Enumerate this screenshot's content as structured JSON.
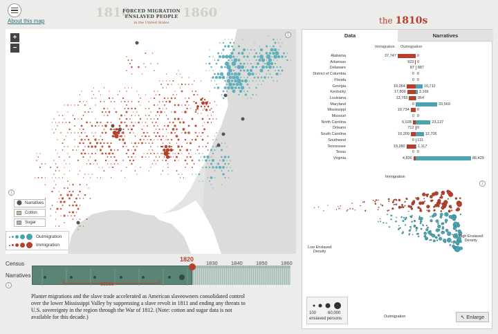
{
  "header": {
    "about_link": "About this map",
    "title_year_start": "1810",
    "title_year_end": "1860",
    "title_line1": "FORCED MIGRATION",
    "title_line2": "ENSLAVED PEOPLE",
    "title_sub": "in the United States",
    "decade_prefix": "the",
    "decade": "1810s"
  },
  "map": {
    "zoom_in": "+",
    "zoom_out": "−",
    "legend": {
      "narratives": "Narratives",
      "cotton": "Cotton",
      "sugar": "Sugar",
      "outmigration": "Outmigration",
      "immigration": "Immigration"
    },
    "colors": {
      "immigration": "#b8402a",
      "outmigration": "#4aa3b0",
      "cotton": "#c9b8a0",
      "sugar": "#9fb3a8"
    }
  },
  "timeline": {
    "census_label": "Census",
    "narratives_label": "Narratives",
    "selected_year": "1820",
    "years": [
      "1830",
      "1840",
      "1850",
      "1860"
    ],
    "decade_label": "1810s"
  },
  "narrative_text": "Planter migrations and the slave trade accelerated as American slaveowners consolidated control over the lower Mississippi Valley by suppressing a slave revolt in 1811 and ending any threats to U.S. sovereignty in the region through the War of 1812. (Note: cotton and sugar data is not available for this decade.)",
  "panel": {
    "tabs": [
      "Data",
      "Narratives"
    ],
    "col_immigration": "Immigration",
    "col_outmigration": "Outmigration",
    "states": [
      {
        "name": "Alabama",
        "imm": "37,747",
        "out": "0",
        "imm_n": 37747,
        "out_n": 0
      },
      {
        "name": "Arkansas",
        "imm": "923",
        "out": "0",
        "imm_n": 923,
        "out_n": 0
      },
      {
        "name": "Delaware",
        "imm": "87",
        "out": "887",
        "imm_n": 87,
        "out_n": 887
      },
      {
        "name": "District of Columbia",
        "imm": "0",
        "out": "0",
        "imm_n": 0,
        "out_n": 0
      },
      {
        "name": "Florida",
        "imm": "0",
        "out": "0",
        "imm_n": 0,
        "out_n": 0
      },
      {
        "name": "Georgia",
        "imm": "19,054",
        "out": "10,712",
        "imm_n": 19054,
        "out_n": 10712
      },
      {
        "name": "Kentucky",
        "imm": "17,809",
        "out": "3,166",
        "imm_n": 17809,
        "out_n": 3166
      },
      {
        "name": "Louisiana",
        "imm": "13,783",
        "out": "954",
        "imm_n": 13783,
        "out_n": 954
      },
      {
        "name": "Maryland",
        "imm": "0",
        "out": "33,569",
        "imm_n": 0,
        "out_n": 33569
      },
      {
        "name": "Mississippi",
        "imm": "10,734",
        "out": "0",
        "imm_n": 10734,
        "out_n": 0
      },
      {
        "name": "Missouri",
        "imm": "0",
        "out": "0",
        "imm_n": 0,
        "out_n": 0
      },
      {
        "name": "North Carolina",
        "imm": "6,028",
        "out": "23,127",
        "imm_n": 6028,
        "out_n": 23127
      },
      {
        "name": "Orleans",
        "imm": "712",
        "out": "0",
        "imm_n": 712,
        "out_n": 0
      },
      {
        "name": "South Carolina",
        "imm": "10,209",
        "out": "12,705",
        "imm_n": 10209,
        "out_n": 12705
      },
      {
        "name": "Southwest",
        "imm": "0",
        "out": "131",
        "imm_n": 0,
        "out_n": 131
      },
      {
        "name": "Tennessee",
        "imm": "19,280",
        "out": "1,117",
        "imm_n": 19280,
        "out_n": 1117
      },
      {
        "name": "Texas",
        "imm": "0",
        "out": "0",
        "imm_n": 0,
        "out_n": 0
      },
      {
        "name": "Virginia",
        "imm": "4,836",
        "out": "86,429",
        "imm_n": 4836,
        "out_n": 86429
      }
    ],
    "scatter": {
      "top_label": "Immigration",
      "bottom_label": "Outmigration",
      "left_label_1": "Low Enslaved",
      "left_label_2": "Density",
      "right_label_1": "High Enslaved",
      "right_label_2": "Density"
    },
    "size_legend": {
      "small": "100",
      "large": "60,000",
      "caption": "enslaved persons"
    },
    "enlarge": "Enlarge"
  }
}
